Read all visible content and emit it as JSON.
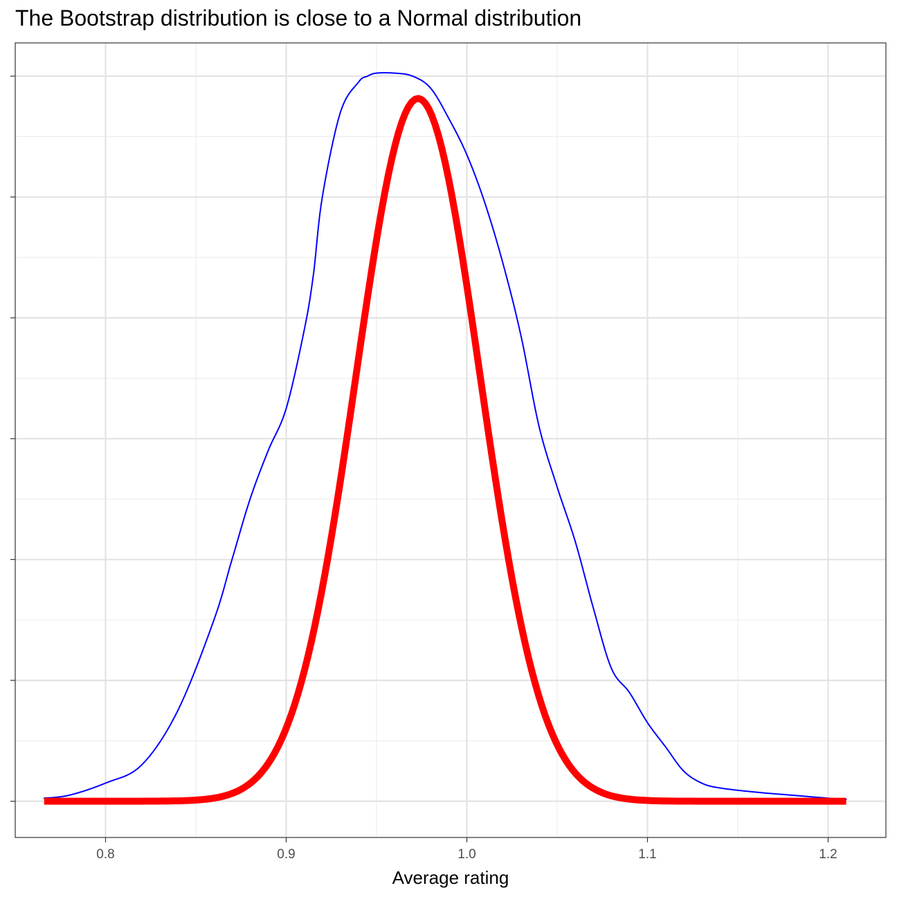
{
  "chart_data": {
    "type": "line",
    "title": "The Bootstrap distribution is close to a Normal distribution",
    "xlabel": "Average rating",
    "ylabel": "",
    "xlim": [
      0.75,
      1.232
    ],
    "ylim": [
      -0.6,
      12.55
    ],
    "x_ticks": [
      0.8,
      0.9,
      1.0,
      1.1,
      1.2
    ],
    "x_tick_labels": [
      "0.8",
      "0.9",
      "1.0",
      "1.1",
      "1.2"
    ],
    "y_ticks": [
      0,
      2,
      4,
      6,
      8,
      10,
      12
    ],
    "y_tick_labels": [],
    "grid": true,
    "legend": "none",
    "series": [
      {
        "color": "#0000FF",
        "line_width": "thin",
        "x": [
          0.766,
          0.78,
          0.8,
          0.82,
          0.84,
          0.86,
          0.87,
          0.88,
          0.89,
          0.9,
          0.91,
          0.915,
          0.92,
          0.93,
          0.94,
          0.945,
          0.95,
          0.96,
          0.97,
          0.98,
          0.99,
          1.0,
          1.01,
          1.02,
          1.03,
          1.04,
          1.05,
          1.06,
          1.07,
          1.08,
          1.09,
          1.1,
          1.11,
          1.12,
          1.13,
          1.14,
          1.16,
          1.18,
          1.2,
          1.21
        ],
        "y": [
          0.05,
          0.1,
          0.3,
          0.6,
          1.5,
          3.0,
          4.0,
          5.0,
          5.8,
          6.5,
          7.8,
          8.7,
          10.0,
          11.4,
          11.9,
          12.0,
          12.05,
          12.05,
          12.0,
          11.8,
          11.3,
          10.7,
          9.9,
          8.9,
          7.7,
          6.2,
          5.2,
          4.3,
          3.2,
          2.2,
          1.8,
          1.3,
          0.9,
          0.5,
          0.3,
          0.22,
          0.15,
          0.1,
          0.05,
          0.03
        ]
      },
      {
        "color": "#FF0000",
        "line_width": "thick",
        "distribution": "normal",
        "mean": 0.973,
        "sd": 0.0343,
        "x_range": [
          0.766,
          1.21
        ]
      }
    ]
  }
}
